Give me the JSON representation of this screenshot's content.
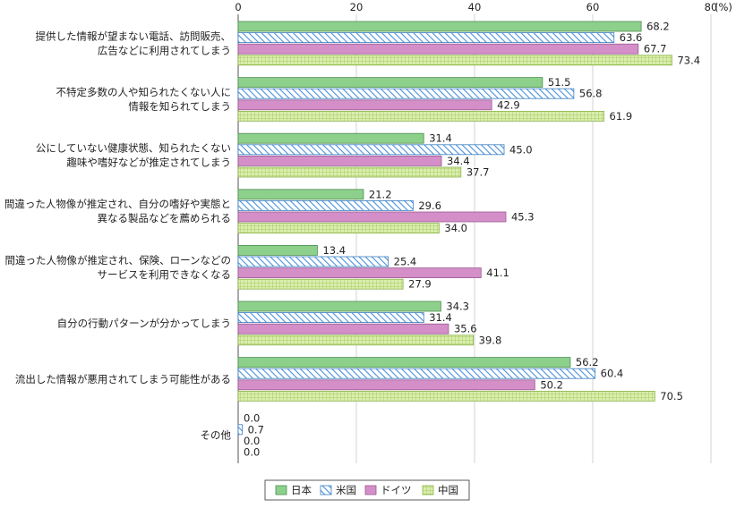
{
  "chart_data": {
    "type": "bar",
    "orientation": "horizontal",
    "unit": "(%)",
    "xlim": [
      0,
      80
    ],
    "ticks": [
      "0",
      "20",
      "40",
      "60",
      "80"
    ],
    "grid": true,
    "legend_position": "bottom-center",
    "categories": [
      [
        "提供した情報が望まない電話、訪問販売、",
        "広告などに利用されてしまう"
      ],
      [
        "不特定多数の人や知られたくない人に",
        "情報を知られてしまう"
      ],
      [
        "公にしていない健康状態、知られたくない",
        "趣味や嗜好などが推定されてしまう"
      ],
      [
        "間違った人物像が推定され、自分の嗜好や実態と",
        "異なる製品などを薦められる"
      ],
      [
        "間違った人物像が推定され、保険、ローンなどの",
        "サービスを利用できなくなる"
      ],
      [
        "自分の行動パターンが分かってしまう"
      ],
      [
        "流出した情報が悪用されてしまう可能性がある"
      ],
      [
        "その他"
      ]
    ],
    "series": [
      {
        "name": "日本",
        "color": "#8cd08c",
        "pattern": "solid",
        "values": [
          68.2,
          51.5,
          31.4,
          21.2,
          13.4,
          34.3,
          56.2,
          0.0
        ]
      },
      {
        "name": "米国",
        "color": "#6aa9dc",
        "pattern": "diagonal",
        "values": [
          63.6,
          56.8,
          45.0,
          29.6,
          25.4,
          31.4,
          60.4,
          0.7
        ]
      },
      {
        "name": "ドイツ",
        "color": "#d48fc9",
        "pattern": "solid",
        "values": [
          67.7,
          42.9,
          34.4,
          45.3,
          41.1,
          35.6,
          50.2,
          0.0
        ]
      },
      {
        "name": "中国",
        "color": "#c5e08a",
        "pattern": "grid",
        "values": [
          73.4,
          61.9,
          37.7,
          34.0,
          27.9,
          39.8,
          70.5,
          0.0
        ]
      }
    ]
  }
}
